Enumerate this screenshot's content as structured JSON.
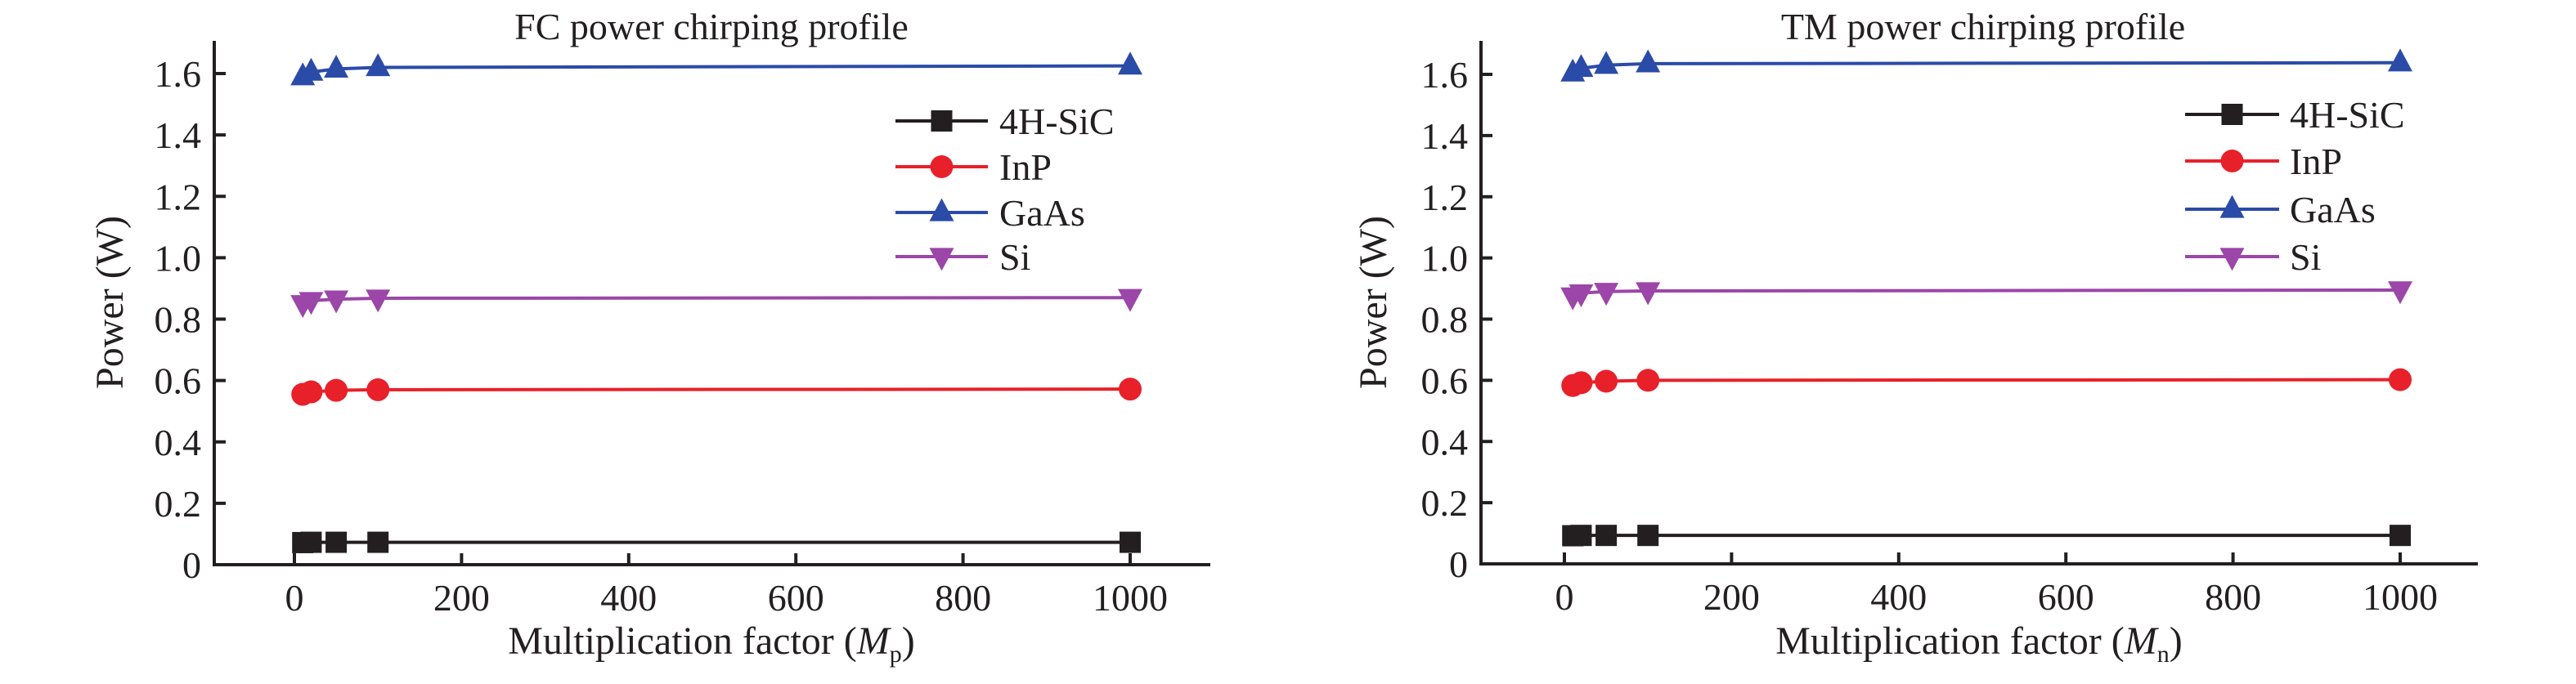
{
  "chart_data": [
    {
      "type": "line",
      "title": "FC power chirping profile",
      "xlabel": "Multiplication factor (M_p)",
      "xlabel_prefix": "Multiplication factor (",
      "xlabel_var": "M",
      "xlabel_sub": "p",
      "xlabel_suffix": ")",
      "ylabel": "Power (W)",
      "xlim": [
        -100,
        1100
      ],
      "ylim": [
        0,
        1.7
      ],
      "xticks": [
        0,
        200,
        400,
        600,
        800,
        1000
      ],
      "xtick_labels": [
        "0",
        "200",
        "400",
        "600",
        "800",
        "1000"
      ],
      "yticks": [
        0,
        0.2,
        0.4,
        0.6,
        0.8,
        1.0,
        1.2,
        1.4,
        1.6
      ],
      "ytick_labels": [
        "0",
        "0.2",
        "0.4",
        "0.6",
        "0.8",
        "1.0",
        "1.2",
        "1.4",
        "1.6"
      ],
      "grid": false,
      "legend_position": "upper-right",
      "x": [
        10,
        20,
        50,
        100,
        1000
      ],
      "series": [
        {
          "name": "4H-SiC",
          "marker": "square",
          "color": "#231f20",
          "values": [
            0.072,
            0.073,
            0.073,
            0.073,
            0.073
          ]
        },
        {
          "name": "InP",
          "marker": "circle",
          "color": "#e8202a",
          "values": [
            0.555,
            0.563,
            0.568,
            0.57,
            0.572
          ]
        },
        {
          "name": "GaAs",
          "marker": "triangle-up",
          "color": "#2b4ba8",
          "values": [
            1.59,
            1.605,
            1.615,
            1.62,
            1.625
          ]
        },
        {
          "name": "Si",
          "marker": "triangle-down",
          "color": "#9b46a8",
          "values": [
            0.85,
            0.86,
            0.865,
            0.868,
            0.87
          ]
        }
      ]
    },
    {
      "type": "line",
      "title": "TM power chirping profile",
      "xlabel": "Multiplication factor (M_n)",
      "xlabel_prefix": "Multiplication factor (",
      "xlabel_var": "M",
      "xlabel_sub": "n",
      "xlabel_suffix": ")",
      "ylabel": "Power (W)",
      "xlim": [
        -100,
        1100
      ],
      "ylim": [
        0,
        1.7
      ],
      "xticks": [
        0,
        200,
        400,
        600,
        800,
        1000
      ],
      "xtick_labels": [
        "0",
        "200",
        "400",
        "600",
        "800",
        "1000"
      ],
      "yticks": [
        0,
        0.2,
        0.4,
        0.6,
        0.8,
        1.0,
        1.2,
        1.4,
        1.6
      ],
      "ytick_labels": [
        "0",
        "0.2",
        "0.4",
        "0.6",
        "0.8",
        "1.0",
        "1.2",
        "1.4",
        "1.6"
      ],
      "grid": false,
      "legend_position": "upper-right",
      "x": [
        10,
        20,
        50,
        100,
        1000
      ],
      "series": [
        {
          "name": "4H-SiC",
          "marker": "square",
          "color": "#231f20",
          "values": [
            0.092,
            0.093,
            0.093,
            0.093,
            0.093
          ]
        },
        {
          "name": "InP",
          "marker": "circle",
          "color": "#e8202a",
          "values": [
            0.583,
            0.592,
            0.597,
            0.6,
            0.602
          ]
        },
        {
          "name": "GaAs",
          "marker": "triangle-up",
          "color": "#2b4ba8",
          "values": [
            1.605,
            1.62,
            1.63,
            1.635,
            1.638
          ]
        },
        {
          "name": "Si",
          "marker": "triangle-down",
          "color": "#9b46a8",
          "values": [
            0.875,
            0.885,
            0.89,
            0.892,
            0.895
          ]
        }
      ]
    }
  ]
}
